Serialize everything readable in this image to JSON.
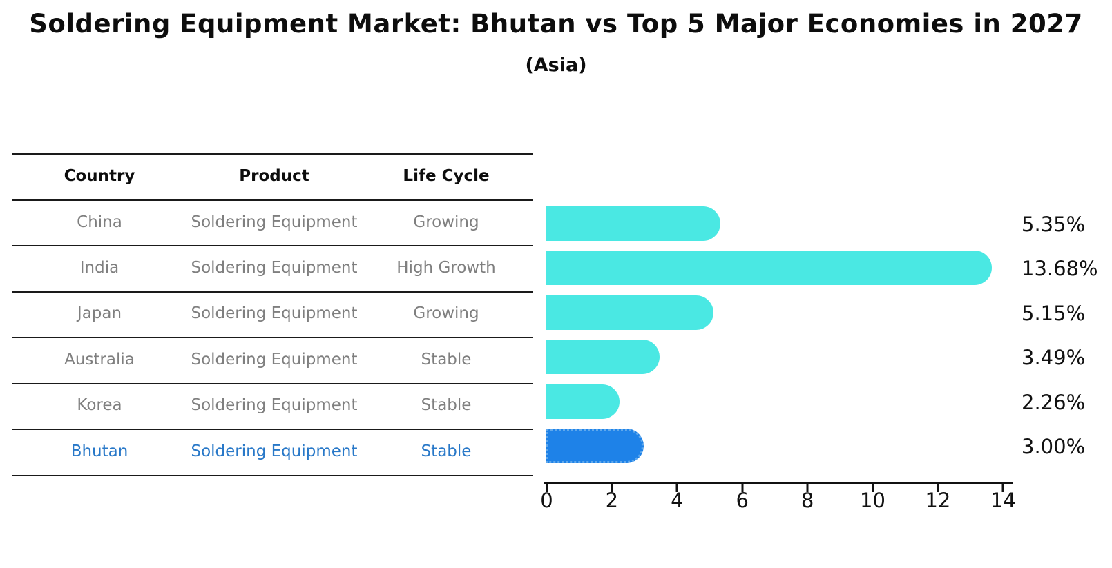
{
  "title": "Soldering Equipment Market: Bhutan vs Top 5 Major Economies in 2027",
  "subtitle": "(Asia)",
  "table": {
    "headers": [
      "Country",
      "Product",
      "Life Cycle"
    ],
    "rows": [
      {
        "country": "China",
        "product": "Soldering Equipment",
        "life_cycle": "Growing"
      },
      {
        "country": "India",
        "product": "Soldering Equipment",
        "life_cycle": "High Growth"
      },
      {
        "country": "Japan",
        "product": "Soldering Equipment",
        "life_cycle": "Growing"
      },
      {
        "country": "Australia",
        "product": "Soldering Equipment",
        "life_cycle": "Stable"
      },
      {
        "country": "Korea",
        "product": "Soldering Equipment",
        "life_cycle": "Stable"
      },
      {
        "country": "Bhutan",
        "product": "Soldering Equipment",
        "life_cycle": "Stable"
      }
    ],
    "highlighted_row": "Bhutan"
  },
  "chart_data": {
    "type": "bar",
    "orientation": "horizontal",
    "title": "Soldering Equipment Market: Bhutan vs Top 5 Major Economies in 2027",
    "subtitle": "(Asia)",
    "categories": [
      "China",
      "India",
      "Japan",
      "Australia",
      "Korea",
      "Bhutan"
    ],
    "values": [
      5.35,
      13.68,
      5.15,
      3.49,
      2.26,
      3.0
    ],
    "labels": [
      "5.35%",
      "13.68%",
      "5.15%",
      "3.49%",
      "2.26%",
      "3.00%"
    ],
    "xlabel": "",
    "ylabel": "",
    "xlim": [
      0,
      14.3
    ],
    "xticks": [
      0,
      2,
      4,
      6,
      8,
      10,
      12,
      14
    ],
    "grid": false,
    "legend": false,
    "highlight_index": 5
  },
  "colors": {
    "bar_color": "#4ae8e3",
    "highlight_bar_color": "#1e82e8",
    "highlight_bar_border": "#5fa8ec",
    "highlight_text": "#2878c8",
    "table_text": "#7f7f7f",
    "heading_text": "#0d0d0d"
  }
}
